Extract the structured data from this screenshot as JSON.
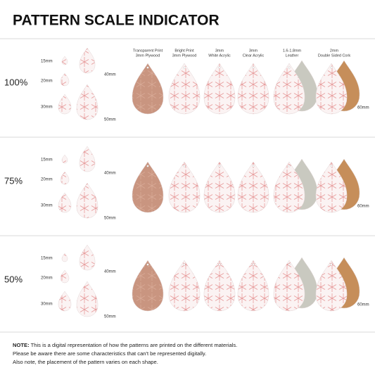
{
  "header": {
    "title": "PATTERN SCALE INDICATOR"
  },
  "materials": [
    {
      "line1": "Transparent Print",
      "line2": "3mm Plywood"
    },
    {
      "line1": "Bright Print",
      "line2": "3mm Plywood"
    },
    {
      "line1": "3mm",
      "line2": "White Acrylic"
    },
    {
      "line1": "3mm",
      "line2": "Clear Acrylic"
    },
    {
      "line1": "1.6-1.8mm",
      "line2": "Leather"
    },
    {
      "line1": "2mm",
      "line2": "Double Sided Cork"
    }
  ],
  "rows": [
    {
      "scale": "100%",
      "sizes": [
        "15mm",
        "20mm",
        "30mm",
        "40mm",
        "50mm"
      ],
      "large_size": "60mm"
    },
    {
      "scale": "75%",
      "sizes": [
        "15mm",
        "20mm",
        "30mm",
        "40mm",
        "50mm"
      ],
      "large_size": "60mm"
    },
    {
      "scale": "50%",
      "sizes": [
        "15mm",
        "20mm",
        "30mm",
        "40mm",
        "50mm"
      ],
      "large_size": "60mm"
    }
  ],
  "note": {
    "label": "NOTE:",
    "lines": [
      "This is a digital representation of how the patterns are printed on the different materials.",
      "Please be aware there are some characteristics that can't be represented digitally.",
      "Also note, the placement of the pattern varies on each shape."
    ]
  }
}
